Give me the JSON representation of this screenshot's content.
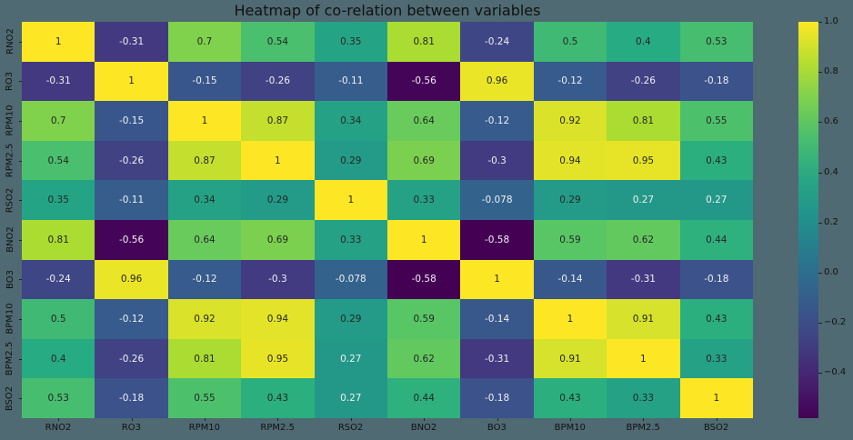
{
  "chart_data": {
    "type": "heatmap",
    "title": "Heatmap of co-relation between variables",
    "xlabel": "",
    "ylabel": "",
    "labels": [
      "RNO2",
      "RO3",
      "RPM10",
      "RPM2.5",
      "RSO2",
      "BNO2",
      "BO3",
      "BPM10",
      "BPM2.5",
      "BSO2"
    ],
    "values": [
      [
        "1",
        "-0.31",
        "0.7",
        "0.54",
        "0.35",
        "0.81",
        "-0.24",
        "0.5",
        "0.4",
        "0.53"
      ],
      [
        "-0.31",
        "1",
        "-0.15",
        "-0.26",
        "-0.11",
        "-0.56",
        "0.96",
        "-0.12",
        "-0.26",
        "-0.18"
      ],
      [
        "0.7",
        "-0.15",
        "1",
        "0.87",
        "0.34",
        "0.64",
        "-0.12",
        "0.92",
        "0.81",
        "0.55"
      ],
      [
        "0.54",
        "-0.26",
        "0.87",
        "1",
        "0.29",
        "0.69",
        "-0.3",
        "0.94",
        "0.95",
        "0.43"
      ],
      [
        "0.35",
        "-0.11",
        "0.34",
        "0.29",
        "1",
        "0.33",
        "-0.078",
        "0.29",
        "0.27",
        "0.27"
      ],
      [
        "0.81",
        "-0.56",
        "0.64",
        "0.69",
        "0.33",
        "1",
        "-0.58",
        "0.59",
        "0.62",
        "0.44"
      ],
      [
        "-0.24",
        "0.96",
        "-0.12",
        "-0.3",
        "-0.078",
        "-0.58",
        "1",
        "-0.14",
        "-0.31",
        "-0.18"
      ],
      [
        "0.5",
        "-0.12",
        "0.92",
        "0.94",
        "0.29",
        "0.59",
        "-0.14",
        "1",
        "0.91",
        "0.43"
      ],
      [
        "0.4",
        "-0.26",
        "0.81",
        "0.95",
        "0.27",
        "0.62",
        "-0.31",
        "0.91",
        "1",
        "0.33"
      ],
      [
        "0.53",
        "-0.18",
        "0.55",
        "0.43",
        "0.27",
        "0.44",
        "-0.18",
        "0.43",
        "0.33",
        "1"
      ]
    ],
    "colormap": "viridis",
    "colorbar": {
      "min": -0.58,
      "max": 1.0,
      "ticks": [
        "1.0",
        "0.8",
        "0.6",
        "0.4",
        "0.2",
        "0.0",
        "−0.2",
        "−0.4"
      ]
    }
  },
  "colors": {
    "background": "#4f6a72"
  }
}
